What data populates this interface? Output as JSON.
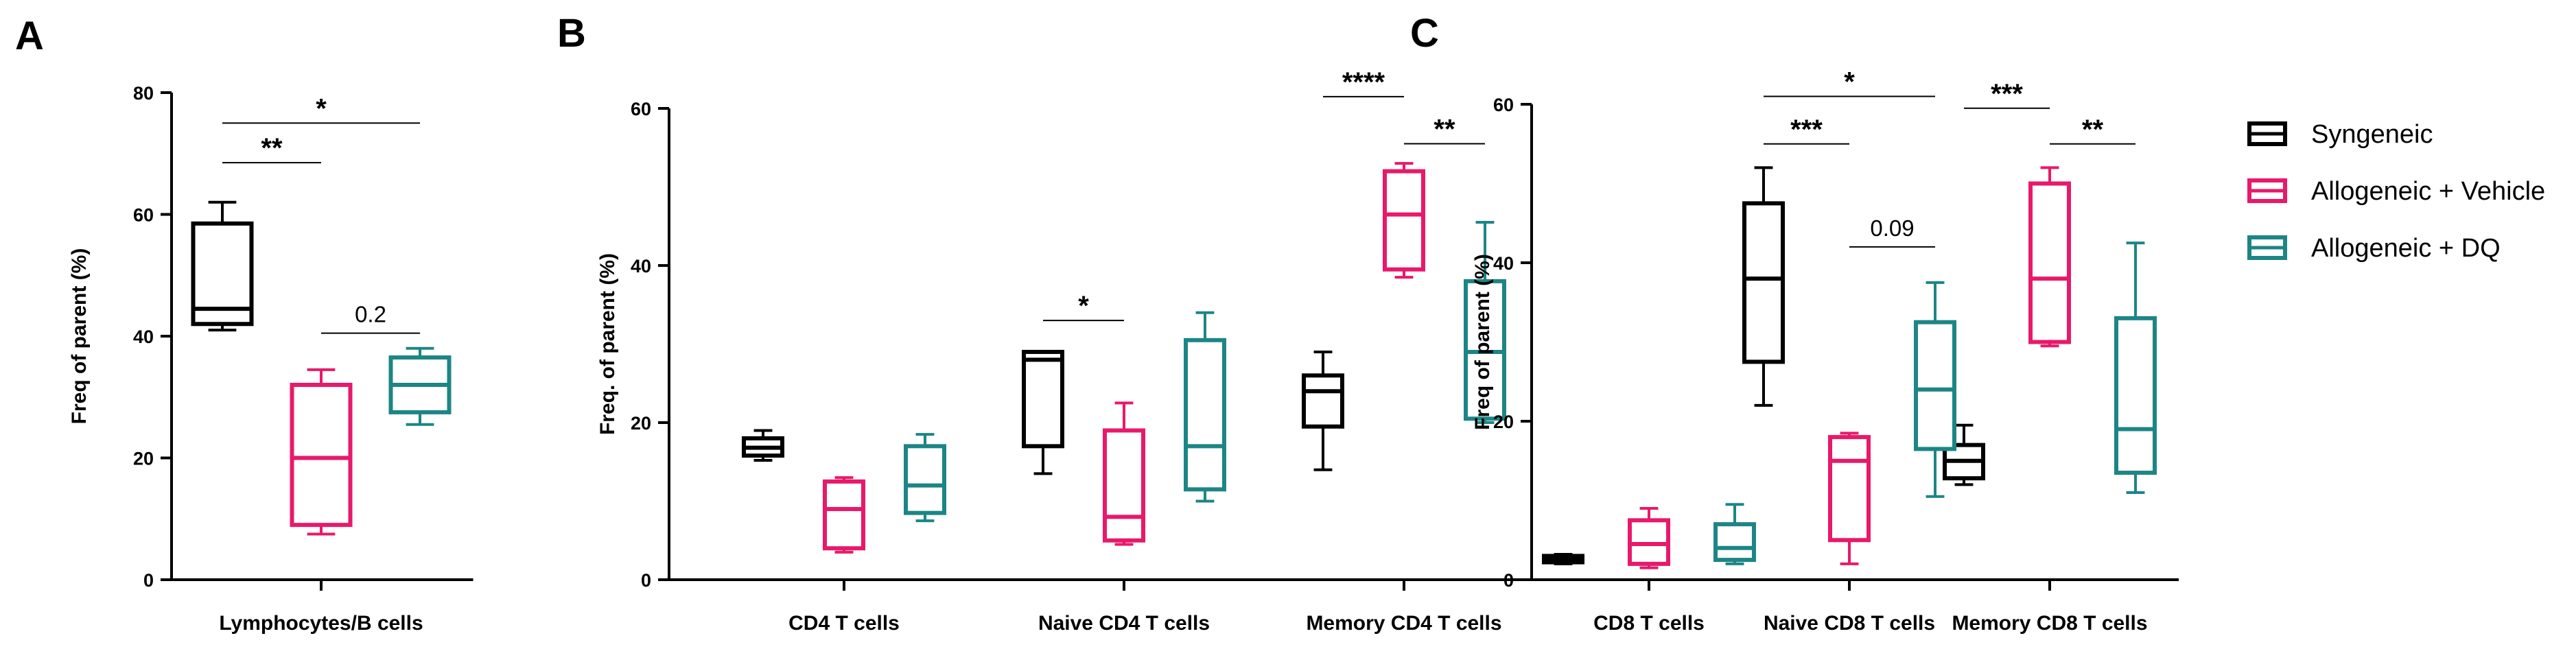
{
  "chart_data": [
    {
      "panel": "A",
      "type": "boxplot",
      "ylabel": "Freq of parent (%)",
      "ylim": [
        0,
        80
      ],
      "yticks": [
        0,
        20,
        40,
        60,
        80
      ],
      "categories": [
        "Lymphocytes/B cells"
      ],
      "series": [
        {
          "name": "Syngeneic",
          "color": "#000000",
          "boxes": [
            {
              "min": 41,
              "q1": 42,
              "median": 44.5,
              "q3": 58.5,
              "max": 62
            }
          ]
        },
        {
          "name": "Allogeneic + Vehicle",
          "color": "#e8196a",
          "boxes": [
            {
              "min": 7.5,
              "q1": 9,
              "median": 20,
              "q3": 32,
              "max": 34.5
            }
          ]
        },
        {
          "name": "Allogeneic + DQ",
          "color": "#1d8585",
          "boxes": [
            {
              "min": 25.5,
              "q1": 27.5,
              "median": 32,
              "q3": 36.5,
              "max": 38
            }
          ]
        }
      ],
      "annotations": [
        {
          "label": "*",
          "cat": 0,
          "from": 0,
          "to": 2,
          "y": 75
        },
        {
          "label": "**",
          "cat": 0,
          "from": 0,
          "to": 1,
          "y": 68.5
        },
        {
          "label": "0.2",
          "cat": 0,
          "from": 1,
          "to": 2,
          "y": 40.5
        }
      ]
    },
    {
      "panel": "B",
      "type": "boxplot",
      "ylabel": "Freq. of parent (%)",
      "ylim": [
        0,
        60
      ],
      "yticks": [
        0,
        20,
        40,
        60
      ],
      "categories": [
        "CD4 T cells",
        "Naive CD4 T cells",
        "Memory CD4 T cells"
      ],
      "series": [
        {
          "name": "Syngeneic",
          "color": "#000000",
          "boxes": [
            {
              "min": 15.2,
              "q1": 15.8,
              "median": 16.8,
              "q3": 18,
              "max": 19
            },
            {
              "min": 13.5,
              "q1": 17,
              "median": 28,
              "q3": 29,
              "max": 29
            },
            {
              "min": 14,
              "q1": 19.5,
              "median": 24,
              "q3": 26,
              "max": 29
            }
          ]
        },
        {
          "name": "Allogeneic + Vehicle",
          "color": "#e8196a",
          "boxes": [
            {
              "min": 3.5,
              "q1": 4,
              "median": 9,
              "q3": 12.5,
              "max": 13
            },
            {
              "min": 4.5,
              "q1": 5,
              "median": 8,
              "q3": 19,
              "max": 22.5
            },
            {
              "min": 38.5,
              "q1": 39.5,
              "median": 46.5,
              "q3": 52,
              "max": 53
            }
          ]
        },
        {
          "name": "Allogeneic + DQ",
          "color": "#1d8585",
          "boxes": [
            {
              "min": 7.5,
              "q1": 8.5,
              "median": 12,
              "q3": 17,
              "max": 18.5
            },
            {
              "min": 10,
              "q1": 11.5,
              "median": 17,
              "q3": 30.5,
              "max": 34
            },
            {
              "min": 20,
              "q1": 20.5,
              "median": 29,
              "q3": 38,
              "max": 45.5
            }
          ]
        }
      ],
      "annotations": [
        {
          "label": "*",
          "cat": 1,
          "from": 0,
          "to": 1,
          "y": 33
        },
        {
          "label": "****",
          "cat": 2,
          "from": 0,
          "to": 1,
          "y": 61.5
        },
        {
          "label": "**",
          "cat": 2,
          "from": 1,
          "to": 2,
          "y": 55.5
        }
      ]
    },
    {
      "panel": "C",
      "type": "boxplot",
      "ylabel": "Freq of parent (%)",
      "ylim": [
        0,
        60
      ],
      "yticks": [
        0,
        20,
        40,
        60
      ],
      "categories": [
        "CD8 T cells",
        "Naive CD8 T cells",
        "Memory CD8 T cells"
      ],
      "series": [
        {
          "name": "Syngeneic",
          "color": "#000000",
          "boxes": [
            {
              "min": 2,
              "q1": 2.2,
              "median": 2.6,
              "q3": 3,
              "max": 3.2
            },
            {
              "min": 22,
              "q1": 27.5,
              "median": 38,
              "q3": 47.5,
              "max": 52
            },
            {
              "min": 12,
              "q1": 12.8,
              "median": 15,
              "q3": 17,
              "max": 19.5
            }
          ]
        },
        {
          "name": "Allogeneic + Vehicle",
          "color": "#e8196a",
          "boxes": [
            {
              "min": 1.5,
              "q1": 2,
              "median": 4.5,
              "q3": 7.5,
              "max": 9
            },
            {
              "min": 2,
              "q1": 5,
              "median": 15,
              "q3": 18,
              "max": 18.5
            },
            {
              "min": 29.5,
              "q1": 30,
              "median": 38,
              "q3": 50,
              "max": 52
            }
          ]
        },
        {
          "name": "Allogeneic + DQ",
          "color": "#1d8585",
          "boxes": [
            {
              "min": 2,
              "q1": 2.5,
              "median": 4,
              "q3": 7,
              "max": 9.5
            },
            {
              "min": 10.5,
              "q1": 16.5,
              "median": 24,
              "q3": 32.5,
              "max": 37.5
            },
            {
              "min": 11,
              "q1": 13.5,
              "median": 19,
              "q3": 33,
              "max": 42.5
            }
          ]
        }
      ],
      "annotations": [
        {
          "label": "*",
          "cat": 1,
          "from": 0,
          "to": 2,
          "y": 61
        },
        {
          "label": "***",
          "cat": 1,
          "from": 0,
          "to": 1,
          "y": 55
        },
        {
          "label": "0.09",
          "cat": 1,
          "from": 1,
          "to": 2,
          "y": 42
        },
        {
          "label": "***",
          "cat": 2,
          "from": 0,
          "to": 1,
          "y": 59.5
        },
        {
          "label": "**",
          "cat": 2,
          "from": 1,
          "to": 2,
          "y": 55
        }
      ]
    }
  ],
  "legend": {
    "items": [
      {
        "label": "Syngeneic",
        "color": "#000000"
      },
      {
        "label": "Allogeneic + Vehicle",
        "color": "#e8196a"
      },
      {
        "label": "Allogeneic + DQ",
        "color": "#1d8585"
      }
    ]
  }
}
